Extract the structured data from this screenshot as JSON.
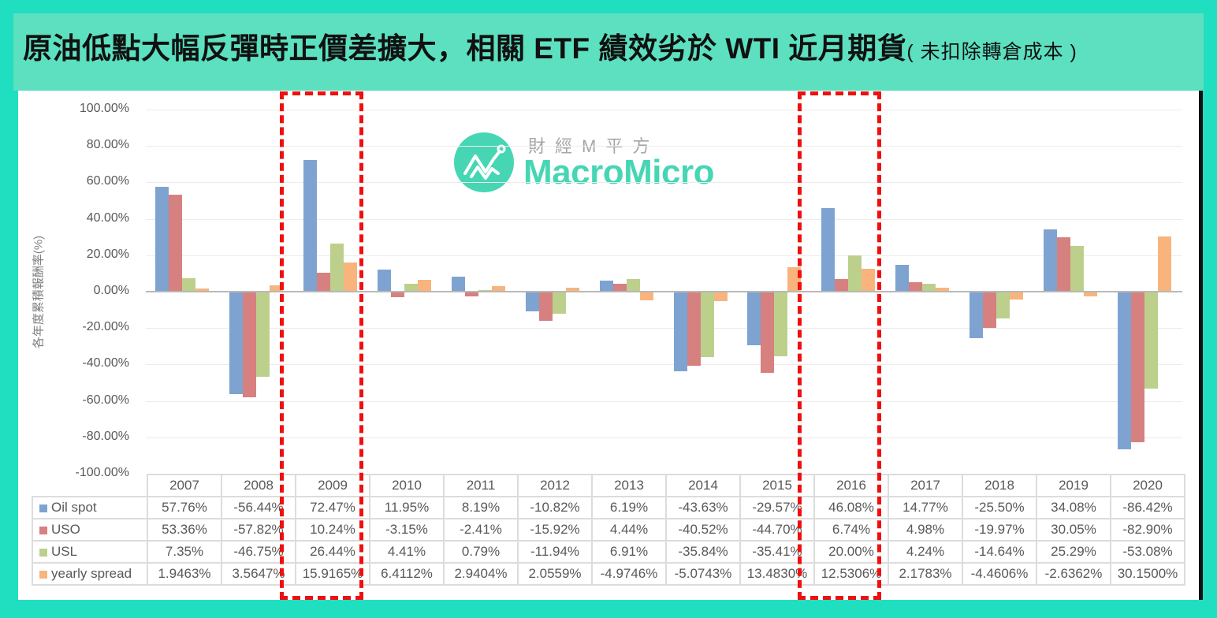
{
  "header": {
    "title": "原油低點大幅反彈時正價差擴大，相關 ETF 績效劣於 WTI 近月期貨",
    "subtitle": "( 未扣除轉倉成本 )"
  },
  "logo": {
    "icon": "macromicro-chart-icon",
    "name_cn": "財經M平方",
    "name_en": "MacroMicro"
  },
  "colors": {
    "Oil spot": "#7ea3d1",
    "USO": "#d68080",
    "USL": "#bcd08c",
    "yearly spread": "#f8b47c",
    "highlight": "#f00f0f",
    "title_bg": "#5ce0c0",
    "page_bg": "#20dfc0"
  },
  "highlighted_years": [
    "2009",
    "2016"
  ],
  "y_axis": {
    "label": "各年度累積報酬率(%)",
    "ticks": [
      "100.00%",
      "80.00%",
      "60.00%",
      "40.00%",
      "20.00%",
      "0.00%",
      "-20.00%",
      "-40.00%",
      "-60.00%",
      "-80.00%",
      "-100.00%"
    ]
  },
  "table": {
    "years": [
      "2007",
      "2008",
      "2009",
      "2010",
      "2011",
      "2012",
      "2013",
      "2014",
      "2015",
      "2016",
      "2017",
      "2018",
      "2019",
      "2020"
    ],
    "rows": [
      {
        "label": "Oil spot",
        "values": [
          "57.76%",
          "-56.44%",
          "72.47%",
          "11.95%",
          "8.19%",
          "-10.82%",
          "6.19%",
          "-43.63%",
          "-29.57%",
          "46.08%",
          "14.77%",
          "-25.50%",
          "34.08%",
          "-86.42%"
        ]
      },
      {
        "label": "USO",
        "values": [
          "53.36%",
          "-57.82%",
          "10.24%",
          "-3.15%",
          "-2.41%",
          "-15.92%",
          "4.44%",
          "-40.52%",
          "-44.70%",
          "6.74%",
          "4.98%",
          "-19.97%",
          "30.05%",
          "-82.90%"
        ]
      },
      {
        "label": "USL",
        "values": [
          "7.35%",
          "-46.75%",
          "26.44%",
          "4.41%",
          "0.79%",
          "-11.94%",
          "6.91%",
          "-35.84%",
          "-35.41%",
          "20.00%",
          "4.24%",
          "-14.64%",
          "25.29%",
          "-53.08%"
        ]
      },
      {
        "label": "yearly spread",
        "values": [
          "1.9463%",
          "3.5647%",
          "15.9165%",
          "6.4112%",
          "2.9404%",
          "2.0559%",
          "-4.9746%",
          "-5.0743%",
          "13.4830%",
          "12.5306%",
          "2.1783%",
          "-4.4606%",
          "-2.6362%",
          "30.1500%"
        ]
      }
    ]
  },
  "chart_data": {
    "type": "bar",
    "title": "原油低點大幅反彈時正價差擴大，相關 ETF 績效劣於 WTI 近月期貨 ( 未扣除轉倉成本 )",
    "xlabel": "",
    "ylabel": "各年度累積報酬率(%)",
    "ylim": [
      -100,
      100
    ],
    "grid": true,
    "legend_position": "data-table",
    "categories": [
      "2007",
      "2008",
      "2009",
      "2010",
      "2011",
      "2012",
      "2013",
      "2014",
      "2015",
      "2016",
      "2017",
      "2018",
      "2019",
      "2020"
    ],
    "series": [
      {
        "name": "Oil spot",
        "values": [
          57.76,
          -56.44,
          72.47,
          11.95,
          8.19,
          -10.82,
          6.19,
          -43.63,
          -29.57,
          46.08,
          14.77,
          -25.5,
          34.08,
          -86.42
        ]
      },
      {
        "name": "USO",
        "values": [
          53.36,
          -57.82,
          10.24,
          -3.15,
          -2.41,
          -15.92,
          4.44,
          -40.52,
          -44.7,
          6.74,
          4.98,
          -19.97,
          30.05,
          -82.9
        ]
      },
      {
        "name": "USL",
        "values": [
          7.35,
          -46.75,
          26.44,
          4.41,
          0.79,
          -11.94,
          6.91,
          -35.84,
          -35.41,
          20.0,
          4.24,
          -14.64,
          25.29,
          -53.08
        ]
      },
      {
        "name": "yearly spread",
        "values": [
          1.9463,
          3.5647,
          15.9165,
          6.4112,
          2.9404,
          2.0559,
          -4.9746,
          -5.0743,
          13.483,
          12.5306,
          2.1783,
          -4.4606,
          -2.6362,
          30.15
        ]
      }
    ],
    "annotations": [
      "red dashed box around 2009",
      "red dashed box around 2016"
    ]
  }
}
